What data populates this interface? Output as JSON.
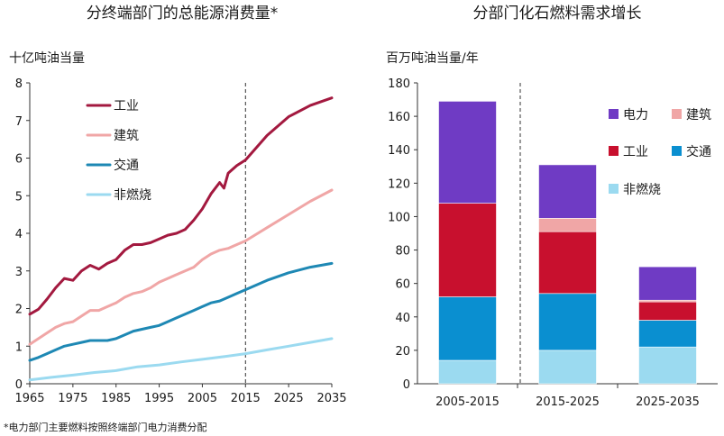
{
  "chart_data": [
    {
      "type": "line",
      "title": "分终端部门的总能源消费量*",
      "ylabel": "十亿吨油当量",
      "xlabel": "",
      "ylim": [
        0,
        8
      ],
      "xlim": [
        1965,
        2035
      ],
      "yticks": [
        0,
        1,
        2,
        3,
        4,
        5,
        6,
        7,
        8
      ],
      "xticks": [
        1965,
        1975,
        1985,
        1995,
        2005,
        2015,
        2025,
        2035
      ],
      "divider_x": 2015,
      "legend_position": "top-left",
      "series": [
        {
          "name": "工业",
          "color": "#a3193f",
          "x": [
            1965,
            1967,
            1969,
            1971,
            1973,
            1975,
            1977,
            1979,
            1981,
            1983,
            1985,
            1987,
            1989,
            1991,
            1993,
            1995,
            1997,
            1999,
            2001,
            2003,
            2005,
            2007,
            2009,
            2010,
            2011,
            2013,
            2015,
            2020,
            2025,
            2030,
            2035
          ],
          "y": [
            1.85,
            1.98,
            2.25,
            2.55,
            2.8,
            2.75,
            3.0,
            3.15,
            3.05,
            3.2,
            3.3,
            3.55,
            3.7,
            3.7,
            3.75,
            3.85,
            3.95,
            4.0,
            4.1,
            4.35,
            4.65,
            5.05,
            5.35,
            5.2,
            5.6,
            5.8,
            5.95,
            6.6,
            7.1,
            7.4,
            7.6
          ]
        },
        {
          "name": "建筑",
          "color": "#f0a6a6",
          "x": [
            1965,
            1967,
            1969,
            1971,
            1973,
            1975,
            1977,
            1979,
            1981,
            1983,
            1985,
            1987,
            1989,
            1991,
            1993,
            1995,
            1997,
            1999,
            2001,
            2003,
            2005,
            2007,
            2009,
            2011,
            2013,
            2015,
            2020,
            2025,
            2030,
            2035
          ],
          "y": [
            1.05,
            1.2,
            1.35,
            1.5,
            1.6,
            1.65,
            1.8,
            1.95,
            1.95,
            2.05,
            2.15,
            2.3,
            2.4,
            2.45,
            2.55,
            2.7,
            2.8,
            2.9,
            3.0,
            3.1,
            3.3,
            3.45,
            3.55,
            3.6,
            3.7,
            3.8,
            4.15,
            4.5,
            4.85,
            5.15
          ]
        },
        {
          "name": "交通",
          "color": "#1e88b4",
          "x": [
            1965,
            1967,
            1969,
            1971,
            1973,
            1975,
            1977,
            1979,
            1981,
            1983,
            1985,
            1987,
            1989,
            1991,
            1993,
            1995,
            1997,
            1999,
            2001,
            2003,
            2005,
            2007,
            2009,
            2011,
            2013,
            2015,
            2020,
            2025,
            2030,
            2035
          ],
          "y": [
            0.62,
            0.7,
            0.8,
            0.9,
            1.0,
            1.05,
            1.1,
            1.15,
            1.15,
            1.15,
            1.2,
            1.3,
            1.4,
            1.45,
            1.5,
            1.55,
            1.65,
            1.75,
            1.85,
            1.95,
            2.05,
            2.15,
            2.2,
            2.3,
            2.4,
            2.5,
            2.75,
            2.95,
            3.1,
            3.2
          ]
        },
        {
          "name": "非燃烧",
          "color": "#9bdaf0",
          "x": [
            1965,
            1970,
            1975,
            1980,
            1985,
            1990,
            1995,
            2000,
            2005,
            2010,
            2015,
            2020,
            2025,
            2030,
            2035
          ],
          "y": [
            0.1,
            0.17,
            0.23,
            0.3,
            0.35,
            0.45,
            0.5,
            0.58,
            0.65,
            0.72,
            0.8,
            0.9,
            1.0,
            1.1,
            1.2
          ]
        }
      ]
    },
    {
      "type": "bar",
      "stacked": true,
      "title": "分部门化石燃料需求增长",
      "ylabel": "百万吨油当量/年",
      "xlabel": "",
      "ylim": [
        0,
        180
      ],
      "yticks": [
        0,
        20,
        40,
        60,
        80,
        100,
        120,
        140,
        160,
        180
      ],
      "categories": [
        "2005-2015",
        "2015-2025",
        "2025-2035"
      ],
      "legend_position": "top-right",
      "legend_order": [
        "电力",
        "建筑",
        "工业",
        "交通",
        "非燃烧"
      ],
      "series": [
        {
          "name": "非燃烧",
          "color": "#9bdaf0",
          "values": [
            14,
            20,
            22
          ]
        },
        {
          "name": "交通",
          "color": "#0a8fd0",
          "values": [
            38,
            34,
            16
          ]
        },
        {
          "name": "工业",
          "color": "#c8102e",
          "values": [
            56,
            37,
            11
          ]
        },
        {
          "name": "建筑",
          "color": "#f0a6a6",
          "values": [
            0,
            8,
            1
          ]
        },
        {
          "name": "电力",
          "color": "#6f3bc4",
          "values": [
            61,
            32,
            20
          ]
        }
      ]
    }
  ],
  "footnote": "*电力部门主要燃料按照终端部门电力消费分配"
}
